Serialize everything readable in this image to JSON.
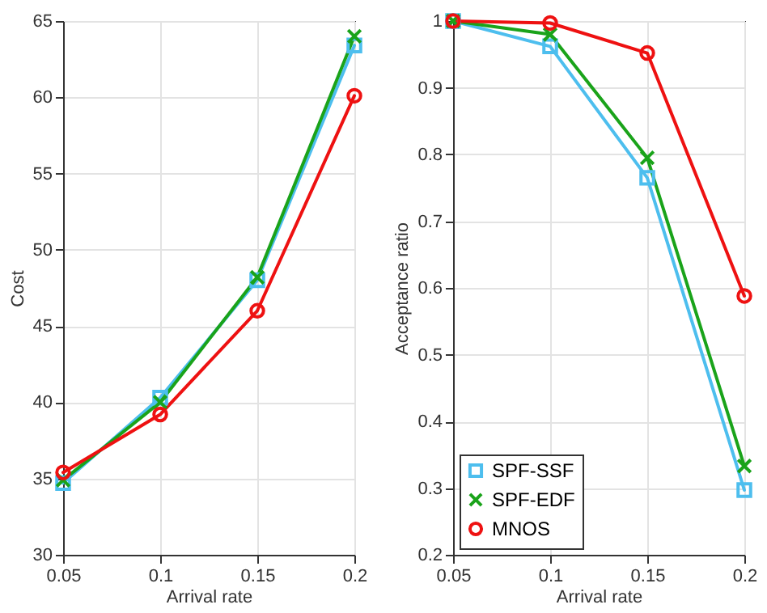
{
  "chart_data": [
    {
      "type": "line",
      "xlabel": "Arrival rate",
      "ylabel": "Cost",
      "x": [
        0.05,
        0.1,
        0.15,
        0.2
      ],
      "xlim": [
        0.05,
        0.2
      ],
      "xticks": [
        0.05,
        0.1,
        0.15,
        0.2
      ],
      "ylim": [
        30,
        65
      ],
      "yticks": [
        30,
        35,
        40,
        45,
        50,
        55,
        60,
        65
      ],
      "grid": true,
      "series": [
        {
          "color": "#4dbeee",
          "marker": "square",
          "values": [
            34.7,
            40.3,
            48.0,
            63.4
          ]
        },
        {
          "color": "#1aa31a",
          "marker": "cross",
          "values": [
            34.9,
            40.0,
            48.2,
            64.0
          ]
        },
        {
          "color": "#ee1111",
          "marker": "circle",
          "values": [
            35.4,
            39.2,
            46.0,
            60.1
          ]
        }
      ]
    },
    {
      "type": "line",
      "xlabel": "Arrival rate",
      "ylabel": "Acceptance ratio",
      "x": [
        0.05,
        0.1,
        0.15,
        0.2
      ],
      "xlim": [
        0.05,
        0.2
      ],
      "xticks": [
        0.05,
        0.1,
        0.15,
        0.2
      ],
      "ylim": [
        0.2,
        1
      ],
      "yticks": [
        0.2,
        0.3,
        0.4,
        0.5,
        0.6,
        0.7,
        0.8,
        0.9,
        1
      ],
      "grid": true,
      "legend": "bottom left",
      "series": [
        {
          "name": "SPF-SSF",
          "color": "#4dbeee",
          "marker": "square",
          "values": [
            1.0,
            0.962,
            0.765,
            0.297
          ]
        },
        {
          "name": "SPF-EDF",
          "color": "#1aa31a",
          "marker": "cross",
          "values": [
            1.0,
            0.98,
            0.795,
            0.333
          ]
        },
        {
          "name": "MNOS",
          "color": "#ee1111",
          "marker": "circle",
          "values": [
            1.0,
            0.997,
            0.952,
            0.588
          ]
        }
      ]
    }
  ]
}
